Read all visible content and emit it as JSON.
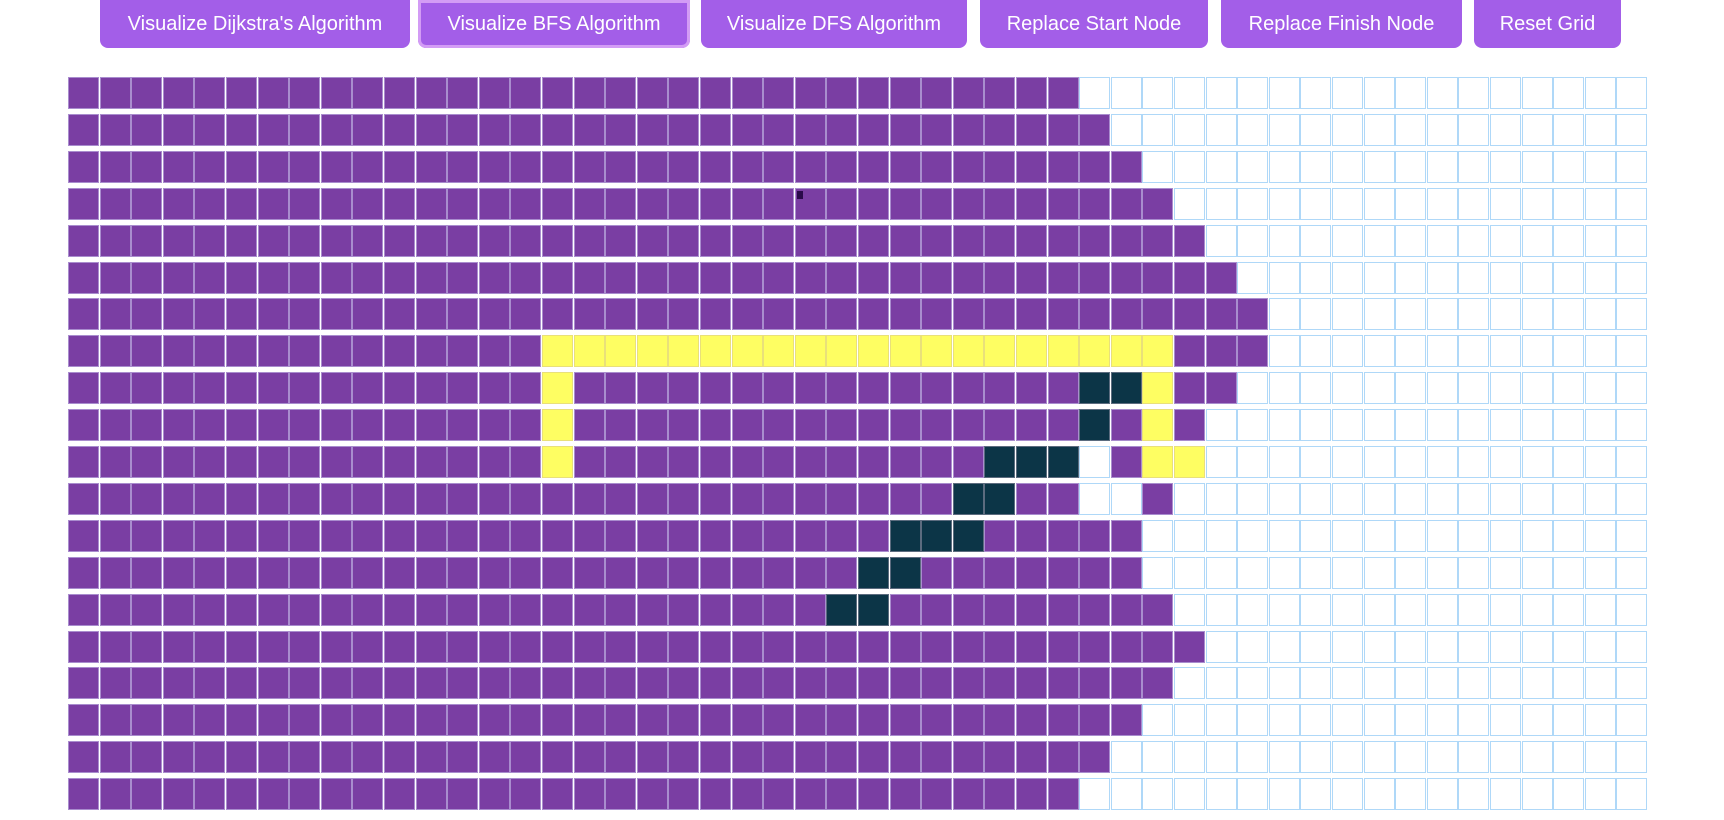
{
  "toolbar": {
    "buttons": [
      {
        "id": "dijkstra",
        "label": "Visualize Dijkstra's Algorithm"
      },
      {
        "id": "bfs",
        "label": "Visualize BFS Algorithm",
        "active": true
      },
      {
        "id": "dfs",
        "label": "Visualize DFS Algorithm"
      },
      {
        "id": "start",
        "label": "Replace Start Node"
      },
      {
        "id": "finish",
        "label": "Replace Finish Node"
      },
      {
        "id": "reset",
        "label": "Reset Grid"
      }
    ]
  },
  "grid": {
    "rows": 20,
    "cols": 50,
    "legend_states": [
      "unvisited",
      "visited",
      "path",
      "wall"
    ],
    "visited_extent_per_row": [
      32,
      33,
      34,
      35,
      36,
      37,
      38,
      38,
      37,
      36,
      36,
      35,
      34,
      34,
      35,
      36,
      35,
      34,
      33,
      32
    ],
    "unvisited_cells": [
      [
        10,
        32
      ],
      [
        11,
        32
      ],
      [
        11,
        33
      ]
    ],
    "path_cells": [
      [
        7,
        15
      ],
      [
        7,
        16
      ],
      [
        7,
        17
      ],
      [
        7,
        18
      ],
      [
        7,
        19
      ],
      [
        7,
        20
      ],
      [
        7,
        21
      ],
      [
        7,
        22
      ],
      [
        7,
        23
      ],
      [
        7,
        24
      ],
      [
        7,
        25
      ],
      [
        7,
        26
      ],
      [
        7,
        27
      ],
      [
        7,
        28
      ],
      [
        7,
        29
      ],
      [
        7,
        30
      ],
      [
        7,
        31
      ],
      [
        7,
        32
      ],
      [
        7,
        33
      ],
      [
        7,
        34
      ],
      [
        8,
        15
      ],
      [
        8,
        34
      ],
      [
        9,
        15
      ],
      [
        9,
        34
      ],
      [
        10,
        15
      ],
      [
        10,
        34
      ],
      [
        10,
        35
      ]
    ],
    "wall_cells": [
      [
        8,
        32
      ],
      [
        8,
        33
      ],
      [
        9,
        32
      ],
      [
        10,
        29
      ],
      [
        10,
        30
      ],
      [
        10,
        31
      ],
      [
        11,
        28
      ],
      [
        11,
        29
      ],
      [
        12,
        26
      ],
      [
        12,
        27
      ],
      [
        12,
        28
      ],
      [
        13,
        25
      ],
      [
        13,
        26
      ],
      [
        14,
        24
      ],
      [
        14,
        25
      ]
    ],
    "colors": {
      "visited": "#7a3ea3",
      "path": "#fefe62",
      "wall": "#0c3547",
      "unvisited_border": "#afd8f8",
      "button": "#a35ee8"
    }
  }
}
